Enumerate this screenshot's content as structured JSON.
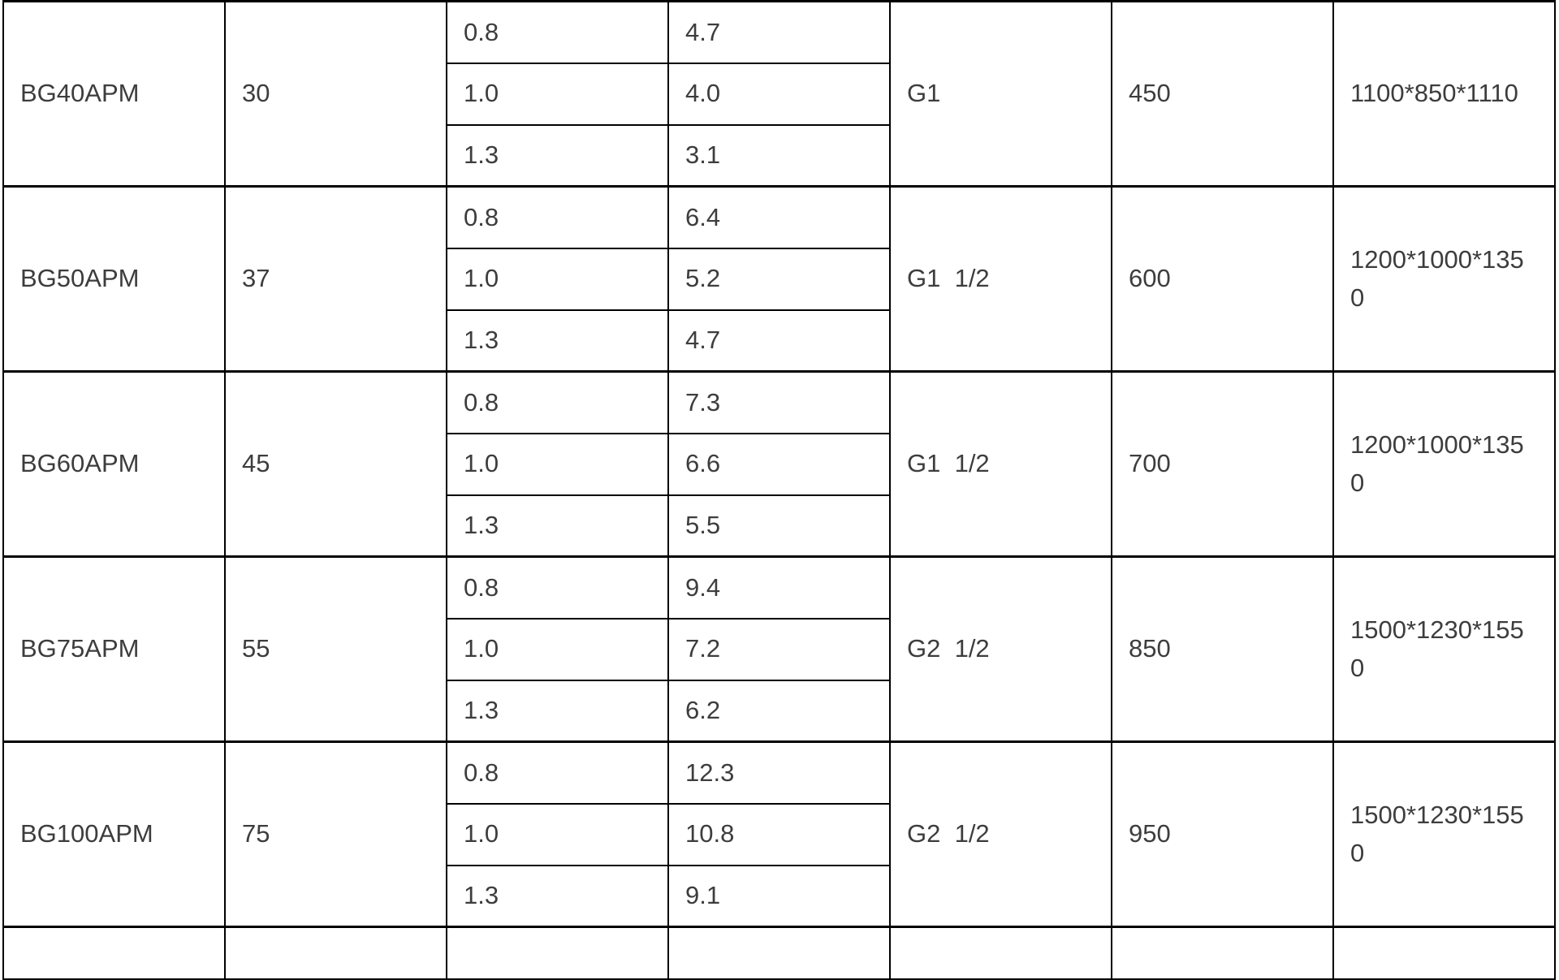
{
  "colors": {
    "border": "#000000",
    "text": "#3d3d3d",
    "background": "#ffffff"
  },
  "table": {
    "description": "Product specification table fragment, no visible headers",
    "groups": [
      {
        "model": "BG40APM",
        "power": "30",
        "rows": [
          {
            "pressure": "0.8",
            "flow": "4.7"
          },
          {
            "pressure": "1.0",
            "flow": "4.0"
          },
          {
            "pressure": "1.3",
            "flow": "3.1"
          }
        ],
        "outlet": "G1",
        "weight": "450",
        "dimensions": "1100*850*1110"
      },
      {
        "model": "BG50APM",
        "power": "37",
        "rows": [
          {
            "pressure": "0.8",
            "flow": "6.4"
          },
          {
            "pressure": "1.0",
            "flow": "5.2"
          },
          {
            "pressure": "1.3",
            "flow": "4.7"
          }
        ],
        "outlet": "G1  1/2",
        "weight": "600",
        "dimensions": "1200*1000*1350"
      },
      {
        "model": "BG60APM",
        "power": "45",
        "rows": [
          {
            "pressure": "0.8",
            "flow": "7.3"
          },
          {
            "pressure": "1.0",
            "flow": "6.6"
          },
          {
            "pressure": "1.3",
            "flow": "5.5"
          }
        ],
        "outlet": "G1  1/2",
        "weight": "700",
        "dimensions": "1200*1000*1350"
      },
      {
        "model": "BG75APM",
        "power": "55",
        "rows": [
          {
            "pressure": "0.8",
            "flow": "9.4"
          },
          {
            "pressure": "1.0",
            "flow": "7.2"
          },
          {
            "pressure": "1.3",
            "flow": "6.2"
          }
        ],
        "outlet": "G2  1/2",
        "weight": "850",
        "dimensions": "1500*1230*1550"
      },
      {
        "model": "BG100APM",
        "power": "75",
        "rows": [
          {
            "pressure": "0.8",
            "flow": "12.3"
          },
          {
            "pressure": "1.0",
            "flow": "10.8"
          },
          {
            "pressure": "1.3",
            "flow": "9.1"
          }
        ],
        "outlet": "G2  1/2",
        "weight": "950",
        "dimensions": "1500*1230*1550"
      }
    ]
  }
}
